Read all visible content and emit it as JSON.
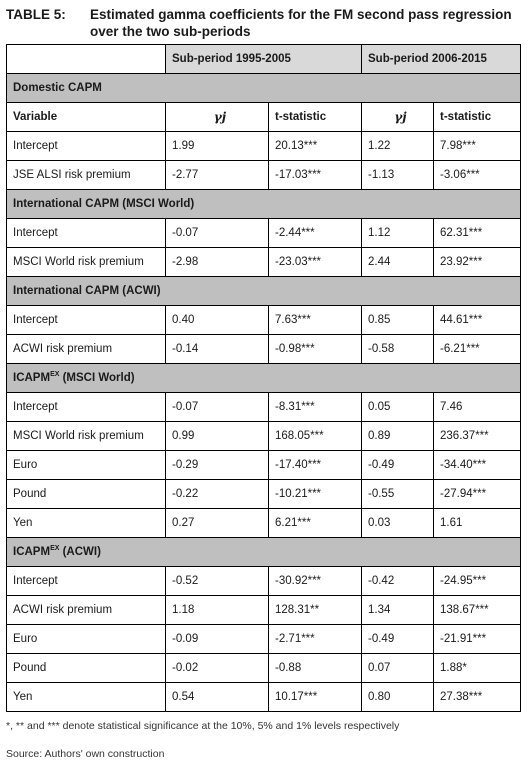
{
  "caption": {
    "label": "TABLE 5:",
    "title": "Estimated gamma coefficients for the FM second pass regression over the two sub-periods"
  },
  "header": {
    "period1": "Sub-period 1995-2005",
    "period2": "Sub-period 2006-2015"
  },
  "column_labels": {
    "variable": "Variable",
    "gamma": "γj",
    "tstat": "t-statistic"
  },
  "sections": [
    {
      "title": "Domestic CAPM",
      "rows": [
        {
          "variable": "Intercept",
          "g1": "1.99",
          "t1": "20.13***",
          "g2": "1.22",
          "t2": "7.98***"
        },
        {
          "variable": "JSE ALSI risk premium",
          "g1": "-2.77",
          "t1": "-17.03***",
          "g2": "-1.13",
          "t2": "-3.06***"
        }
      ]
    },
    {
      "title": "International CAPM (MSCI World)",
      "rows": [
        {
          "variable": "Intercept",
          "g1": "-0.07",
          "t1": "-2.44***",
          "g2": "1.12",
          "t2": "62.31***"
        },
        {
          "variable": "MSCI World risk premium",
          "g1": "-2.98",
          "t1": "-23.03***",
          "g2": "2.44",
          "t2": "23.92***"
        }
      ]
    },
    {
      "title": "International CAPM (ACWI)",
      "rows": [
        {
          "variable": "Intercept",
          "g1": "0.40",
          "t1": "7.63***",
          "g2": "0.85",
          "t2": "44.61***"
        },
        {
          "variable": "ACWI risk premium",
          "g1": "-0.14",
          "t1": "-0.98***",
          "g2": "-0.58",
          "t2": "-6.21***"
        }
      ]
    },
    {
      "title": "ICAPM",
      "title_sup": "EX",
      "title_suffix": " (MSCI World)",
      "rows": [
        {
          "variable": "Intercept",
          "g1": "-0.07",
          "t1": "-8.31***",
          "g2": "0.05",
          "t2": "7.46"
        },
        {
          "variable": "MSCI World risk premium",
          "g1": "0.99",
          "t1": "168.05***",
          "g2": "0.89",
          "t2": "236.37***"
        },
        {
          "variable": "Euro",
          "g1": "-0.29",
          "t1": "-17.40***",
          "g2": "-0.49",
          "t2": "-34.40***"
        },
        {
          "variable": "Pound",
          "g1": "-0.22",
          "t1": "-10.21***",
          "g2": "-0.55",
          "t2": "-27.94***"
        },
        {
          "variable": "Yen",
          "g1": "0.27",
          "t1": "6.21***",
          "g2": "0.03",
          "t2": "1.61"
        }
      ]
    },
    {
      "title": "ICAPM",
      "title_sup": "EX",
      "title_suffix": " (ACWI)",
      "rows": [
        {
          "variable": "Intercept",
          "g1": "-0.52",
          "t1": "-30.92***",
          "g2": "-0.42",
          "t2": "-24.95***"
        },
        {
          "variable": "ACWI risk premium",
          "g1": "1.18",
          "t1": "128.31**",
          "g2": "1.34",
          "t2": "138.67***"
        },
        {
          "variable": "Euro",
          "g1": "-0.09",
          "t1": "-2.71***",
          "g2": "-0.49",
          "t2": "-21.91***"
        },
        {
          "variable": "Pound",
          "g1": "-0.02",
          "t1": "-0.88",
          "g2": "0.07",
          "t2": "1.88*"
        },
        {
          "variable": "Yen",
          "g1": "0.54",
          "t1": "10.17***",
          "g2": "0.80",
          "t2": "27.38***"
        }
      ]
    }
  ],
  "footnote": "*, ** and *** denote statistical significance at the 10%, 5% and 1% levels respectively",
  "source": "Source: Authors' own construction",
  "colors": {
    "header_fill": "#d9d9d9",
    "section_fill": "#bfbfbf",
    "border": "#000000"
  }
}
